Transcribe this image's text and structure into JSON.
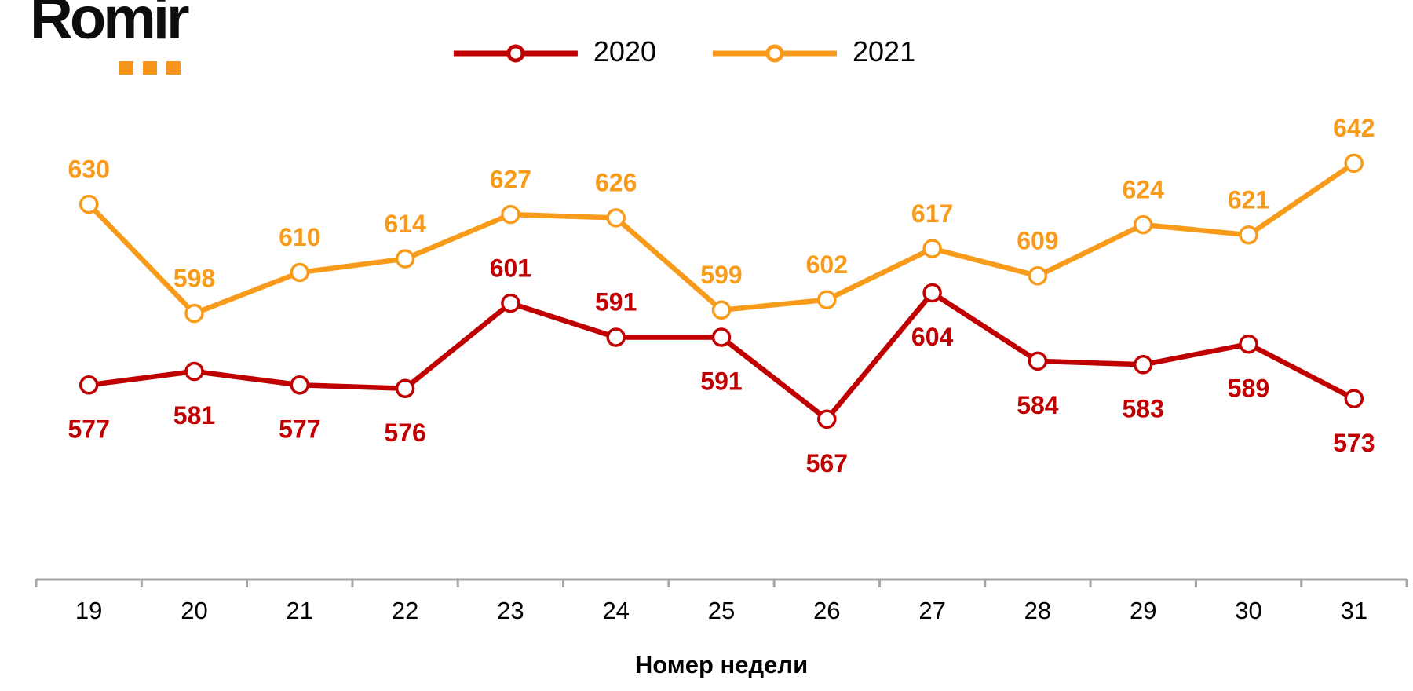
{
  "logo": {
    "text": "Romir",
    "text_color": "#0d0d0d",
    "dot_color": "#F7941E",
    "dot_count": 3
  },
  "legend": {
    "items": [
      {
        "label": "2020"
      },
      {
        "label": "2021"
      }
    ]
  },
  "chart_data": {
    "type": "line",
    "categories": [
      "19",
      "20",
      "21",
      "22",
      "23",
      "24",
      "25",
      "26",
      "27",
      "28",
      "29",
      "30",
      "31"
    ],
    "xlabel": "Номер недели",
    "ylim": [
      520,
      665
    ],
    "grid": false,
    "legend_position": "top",
    "axis_color": "#A6A6A6",
    "marker_fill": "#FFFFFF",
    "series": [
      {
        "name": "2020",
        "color": "#C00000",
        "values": [
          577,
          581,
          577,
          576,
          601,
          591,
          591,
          567,
          604,
          584,
          583,
          589,
          573
        ],
        "label_positions": [
          "below",
          "below",
          "below",
          "below",
          "above",
          "above",
          "below",
          "below",
          "below",
          "below",
          "below",
          "below",
          "below"
        ]
      },
      {
        "name": "2021",
        "color": "#F89B1B",
        "values": [
          630,
          598,
          610,
          614,
          627,
          626,
          599,
          602,
          617,
          609,
          624,
          621,
          642
        ],
        "label_positions": [
          "above",
          "above",
          "above",
          "above",
          "above",
          "above",
          "above",
          "above",
          "above",
          "above",
          "above",
          "above",
          "above"
        ]
      }
    ]
  }
}
